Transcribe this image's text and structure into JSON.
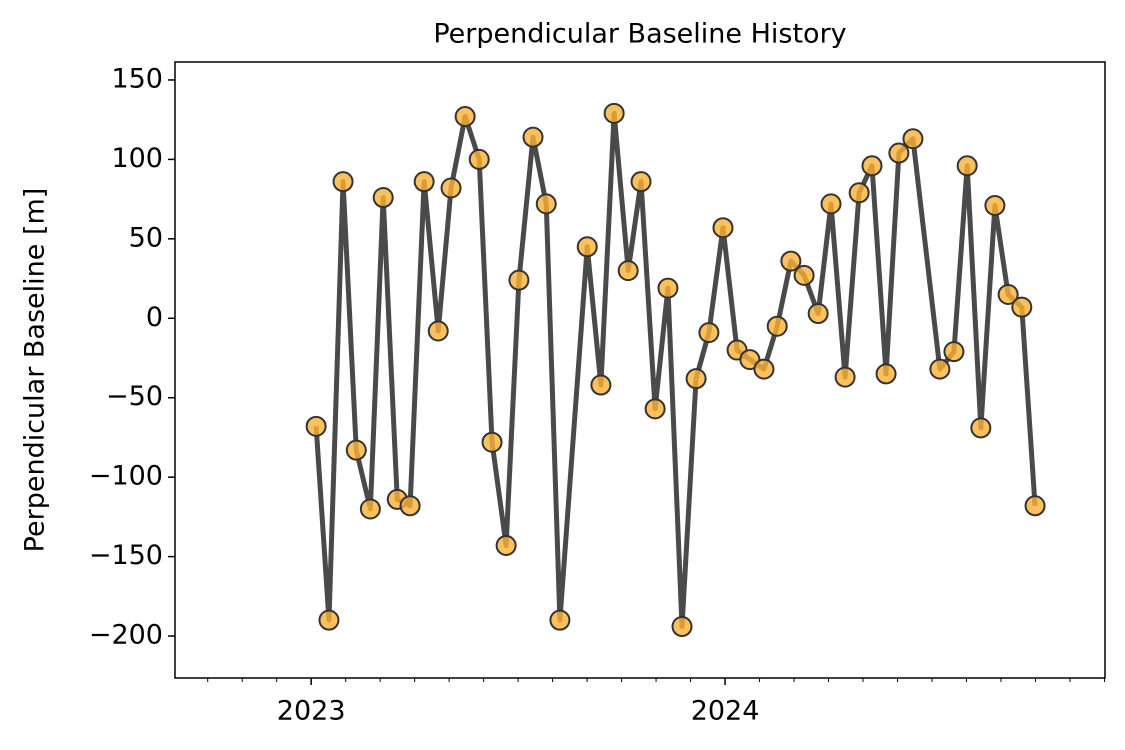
{
  "chart_data": {
    "type": "line",
    "title": "Perpendicular Baseline History",
    "ylabel": "Perpendicular Baseline [m]",
    "x": [
      2023.012,
      2023.043,
      2023.077,
      2023.109,
      2023.143,
      2023.174,
      2023.208,
      2023.239,
      2023.273,
      2023.307,
      2023.338,
      2023.372,
      2023.406,
      2023.437,
      2023.471,
      2023.502,
      2023.536,
      2023.568,
      2023.601,
      2023.667,
      2023.7,
      2023.732,
      2023.766,
      2023.797,
      2023.831,
      2023.862,
      2023.896,
      2023.93,
      2023.961,
      2023.995,
      2024.029,
      2024.06,
      2024.094,
      2024.126,
      2024.159,
      2024.191,
      2024.225,
      2024.256,
      2024.29,
      2024.324,
      2024.355,
      2024.389,
      2024.42,
      2024.454,
      2024.519,
      2024.553,
      2024.585,
      2024.618,
      2024.652,
      2024.684,
      2024.717,
      2024.749
    ],
    "series": [
      {
        "color": "#404040",
        "marker_color": "#fbb034",
        "values": [
          -68,
          -190,
          86,
          -83,
          -120,
          76,
          -114,
          -118,
          86,
          -8,
          82,
          127,
          100,
          -78,
          -143,
          24,
          114,
          72,
          -190,
          45,
          -42,
          129,
          30,
          86,
          -57,
          19,
          -194,
          -38,
          -9,
          57,
          -20,
          -26,
          -32,
          -5,
          36,
          27,
          3,
          72,
          -37,
          79,
          96,
          -35,
          104,
          113,
          -32,
          -21,
          96,
          -69,
          71,
          15,
          7,
          -118
        ]
      }
    ],
    "xlim": [
      2022.671,
      2024.918
    ],
    "xticks": [
      2023,
      2024
    ],
    "ylim": [
      -226.4,
      161.3
    ],
    "yticks": [
      {
        "value": -200,
        "label": "−200"
      },
      {
        "value": -150,
        "label": "−150"
      },
      {
        "value": -100,
        "label": "−100"
      },
      {
        "value": -50,
        "label": "−50"
      },
      0,
      50,
      100,
      150
    ]
  }
}
